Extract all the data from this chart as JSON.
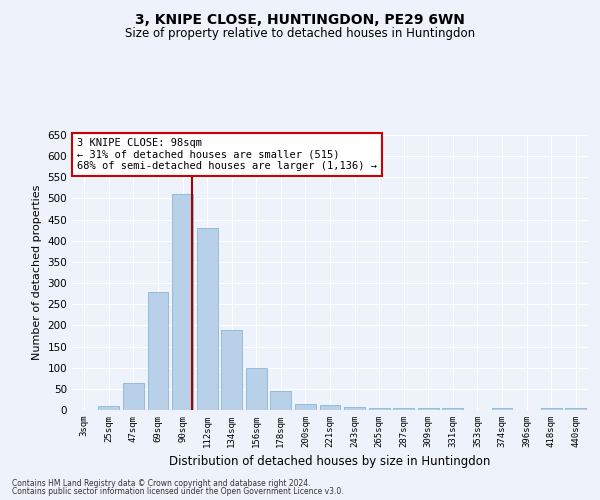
{
  "title": "3, KNIPE CLOSE, HUNTINGDON, PE29 6WN",
  "subtitle": "Size of property relative to detached houses in Huntingdon",
  "xlabel": "Distribution of detached houses by size in Huntingdon",
  "ylabel": "Number of detached properties",
  "footer1": "Contains HM Land Registry data © Crown copyright and database right 2024.",
  "footer2": "Contains public sector information licensed under the Open Government Licence v3.0.",
  "annotation_line1": "3 KNIPE CLOSE: 98sqm",
  "annotation_line2": "← 31% of detached houses are smaller (515)",
  "annotation_line3": "68% of semi-detached houses are larger (1,136) →",
  "property_size": 98,
  "bar_color": "#b8d0e8",
  "bar_edge_color": "#7aafd4",
  "vline_color": "#aa0000",
  "background_color": "#eef2fa",
  "grid_color": "#ffffff",
  "annotation_box_color": "#ffffff",
  "annotation_box_edge": "#cc0000",
  "categories": [
    "3sqm",
    "25sqm",
    "47sqm",
    "69sqm",
    "90sqm",
    "112sqm",
    "134sqm",
    "156sqm",
    "178sqm",
    "200sqm",
    "221sqm",
    "243sqm",
    "265sqm",
    "287sqm",
    "309sqm",
    "331sqm",
    "353sqm",
    "374sqm",
    "396sqm",
    "418sqm",
    "440sqm"
  ],
  "values": [
    0,
    10,
    65,
    280,
    510,
    430,
    190,
    100,
    45,
    15,
    12,
    8,
    5,
    5,
    5,
    5,
    0,
    5,
    0,
    5,
    5
  ],
  "ylim": [
    0,
    650
  ],
  "yticks": [
    0,
    50,
    100,
    150,
    200,
    250,
    300,
    350,
    400,
    450,
    500,
    550,
    600,
    650
  ]
}
